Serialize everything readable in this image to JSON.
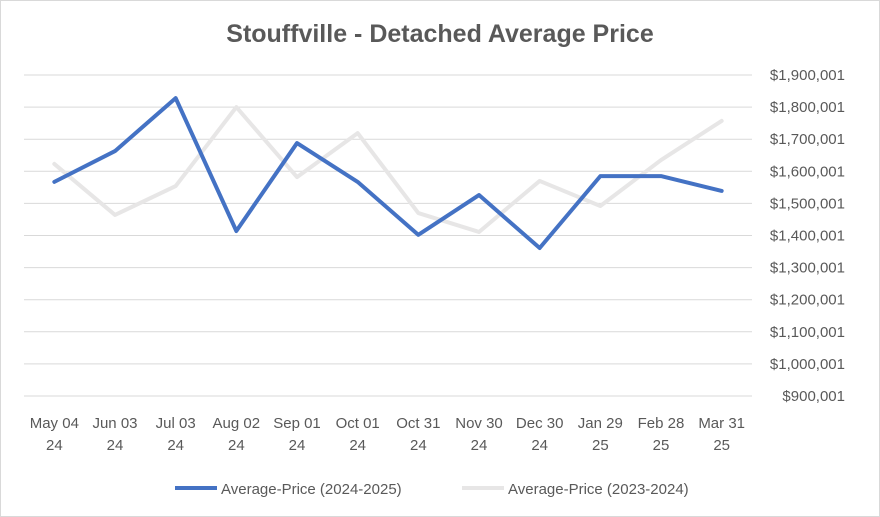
{
  "chart_data": {
    "type": "line",
    "title": "Stouffville - Detached Average Price",
    "xlabel": "",
    "ylabel": "",
    "categories": [
      [
        "May 04",
        "24"
      ],
      [
        "Jun 03",
        "24"
      ],
      [
        "Jul 03",
        "24"
      ],
      [
        "Aug 02",
        "24"
      ],
      [
        "Sep 01",
        "24"
      ],
      [
        "Oct 01",
        "24"
      ],
      [
        "Oct 31",
        "24"
      ],
      [
        "Nov 30",
        "24"
      ],
      [
        "Dec 30",
        "24"
      ],
      [
        "Jan 29",
        "25"
      ],
      [
        "Feb 28",
        "25"
      ],
      [
        "Mar 31",
        "25"
      ]
    ],
    "yticks": [
      "$900,001",
      "$1,000,001",
      "$1,100,001",
      "$1,200,001",
      "$1,300,001",
      "$1,400,001",
      "$1,500,001",
      "$1,600,001",
      "$1,700,001",
      "$1,800,001",
      "$1,900,001"
    ],
    "ylim": [
      900001,
      1900001
    ],
    "grid": true,
    "legend_position": "bottom",
    "series": [
      {
        "name": "Average-Price (2024-2025)",
        "color": "#4472c4",
        "values": [
          1567000,
          1663000,
          1828000,
          1414000,
          1688000,
          1567000,
          1402000,
          1526000,
          1361000,
          1585000,
          1585000,
          1539000
        ]
      },
      {
        "name": "Average-Price (2023-2024)",
        "color": "#e7e6e6",
        "values": [
          1623000,
          1464000,
          1554000,
          1800000,
          1582000,
          1719000,
          1470000,
          1411000,
          1570000,
          1492000,
          1635000,
          1757000
        ]
      }
    ]
  }
}
